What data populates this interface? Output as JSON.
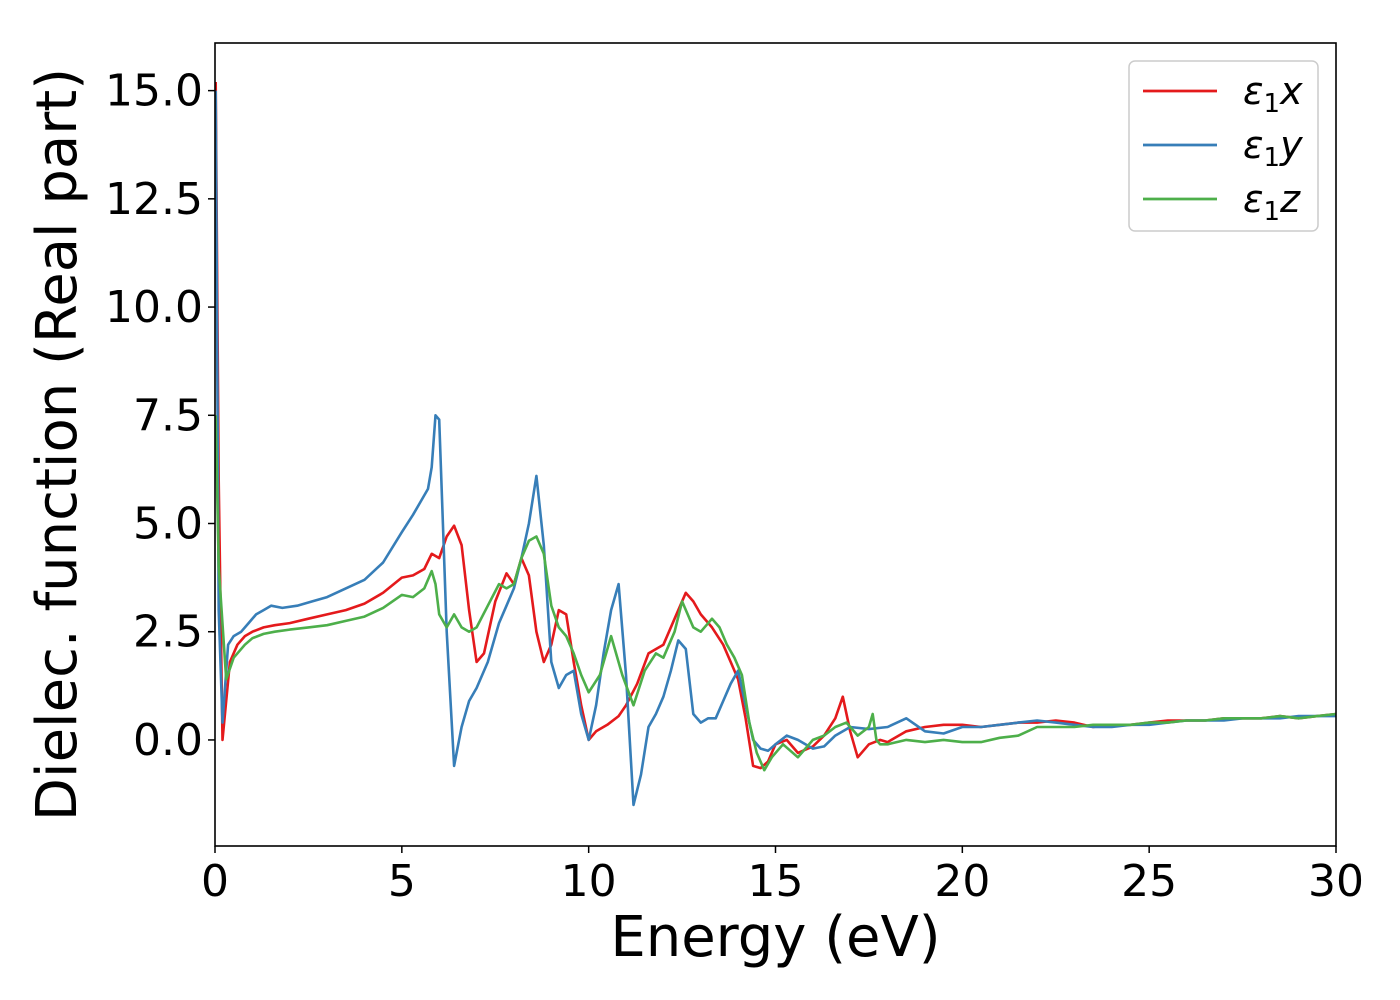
{
  "chart_data": {
    "type": "line",
    "xlabel": "Energy (eV)",
    "ylabel": "Dielec. function (Real part)",
    "xlim": [
      0,
      30
    ],
    "ylim": [
      -2.45,
      16.1
    ],
    "xticks": [
      0,
      5,
      10,
      15,
      20,
      25,
      30
    ],
    "xtick_labels": [
      "0",
      "5",
      "10",
      "15",
      "20",
      "25",
      "30"
    ],
    "yticks": [
      0.0,
      2.5,
      5.0,
      7.5,
      10.0,
      12.5,
      15.0
    ],
    "ytick_labels": [
      "0.0",
      "2.5",
      "5.0",
      "7.5",
      "10.0",
      "12.5",
      "15.0"
    ],
    "grid": false,
    "legend_position": "top-right",
    "series": [
      {
        "name": "ε1x",
        "base": "ε",
        "sub": "1",
        "suffix": "x",
        "color": "#e41a1c",
        "x": [
          0.02,
          0.1,
          0.2,
          0.4,
          0.6,
          0.8,
          1.0,
          1.3,
          1.6,
          2.0,
          2.5,
          3.0,
          3.5,
          4.0,
          4.5,
          5.0,
          5.3,
          5.6,
          5.8,
          6.0,
          6.2,
          6.4,
          6.6,
          6.8,
          7.0,
          7.2,
          7.5,
          7.8,
          8.0,
          8.2,
          8.4,
          8.6,
          8.8,
          9.0,
          9.2,
          9.4,
          9.6,
          9.8,
          10.0,
          10.2,
          10.5,
          10.8,
          11.0,
          11.3,
          11.6,
          12.0,
          12.3,
          12.6,
          12.8,
          13.0,
          13.3,
          13.6,
          13.8,
          14.0,
          14.2,
          14.4,
          14.6,
          14.8,
          15.0,
          15.3,
          15.6,
          16.0,
          16.3,
          16.6,
          16.8,
          17.0,
          17.2,
          17.5,
          17.8,
          18.0,
          18.5,
          19.0,
          19.5,
          20.0,
          20.5,
          21.0,
          21.5,
          22.0,
          22.5,
          23.0,
          23.5,
          24.0,
          24.5,
          25.0,
          25.5,
          26.0,
          26.5,
          27.0,
          27.5,
          28.0,
          28.5,
          29.0,
          29.5,
          30.0
        ],
        "y": [
          15.2,
          6.0,
          0.0,
          1.8,
          2.2,
          2.4,
          2.5,
          2.6,
          2.65,
          2.7,
          2.8,
          2.9,
          3.0,
          3.15,
          3.4,
          3.75,
          3.8,
          3.95,
          4.3,
          4.2,
          4.7,
          4.95,
          4.5,
          3.0,
          1.8,
          2.0,
          3.2,
          3.85,
          3.6,
          4.2,
          3.8,
          2.5,
          1.8,
          2.2,
          3.0,
          2.9,
          1.8,
          0.8,
          0.0,
          0.2,
          0.35,
          0.55,
          0.8,
          1.3,
          2.0,
          2.2,
          2.8,
          3.4,
          3.2,
          2.9,
          2.6,
          2.2,
          1.8,
          1.4,
          0.5,
          -0.6,
          -0.65,
          -0.5,
          -0.1,
          0.0,
          -0.3,
          -0.15,
          0.1,
          0.5,
          1.0,
          0.2,
          -0.4,
          -0.1,
          0.0,
          -0.05,
          0.2,
          0.3,
          0.35,
          0.35,
          0.3,
          0.35,
          0.4,
          0.4,
          0.45,
          0.4,
          0.3,
          0.35,
          0.35,
          0.4,
          0.45,
          0.45,
          0.45,
          0.5,
          0.5,
          0.5,
          0.55,
          0.5,
          0.55,
          0.6
        ]
      },
      {
        "name": "ε1y",
        "base": "ε",
        "sub": "1",
        "suffix": "y",
        "color": "#377eb8",
        "x": [
          0.02,
          0.1,
          0.2,
          0.35,
          0.5,
          0.7,
          0.9,
          1.1,
          1.3,
          1.5,
          1.8,
          2.2,
          2.6,
          3.0,
          3.5,
          4.0,
          4.5,
          5.0,
          5.3,
          5.5,
          5.7,
          5.8,
          5.9,
          6.0,
          6.1,
          6.2,
          6.4,
          6.6,
          6.8,
          7.0,
          7.3,
          7.6,
          7.8,
          8.0,
          8.2,
          8.4,
          8.6,
          8.8,
          9.0,
          9.2,
          9.4,
          9.6,
          9.8,
          10.0,
          10.2,
          10.4,
          10.6,
          10.8,
          11.0,
          11.2,
          11.4,
          11.6,
          11.8,
          12.0,
          12.2,
          12.4,
          12.6,
          12.8,
          13.0,
          13.2,
          13.4,
          13.6,
          13.8,
          14.0,
          14.2,
          14.4,
          14.6,
          14.8,
          15.0,
          15.3,
          15.6,
          16.0,
          16.3,
          16.6,
          17.0,
          17.5,
          18.0,
          18.5,
          19.0,
          19.5,
          20.0,
          20.5,
          21.0,
          21.5,
          22.0,
          22.5,
          23.0,
          23.5,
          24.0,
          24.5,
          25.0,
          25.5,
          26.0,
          26.5,
          27.0,
          27.5,
          28.0,
          28.5,
          29.0,
          29.5,
          30.0
        ],
        "y": [
          15.0,
          3.0,
          0.4,
          2.2,
          2.4,
          2.5,
          2.7,
          2.9,
          3.0,
          3.1,
          3.05,
          3.1,
          3.2,
          3.3,
          3.5,
          3.7,
          4.1,
          4.8,
          5.2,
          5.5,
          5.8,
          6.3,
          7.5,
          7.4,
          5.0,
          2.5,
          -0.6,
          0.3,
          0.9,
          1.2,
          1.8,
          2.7,
          3.1,
          3.5,
          4.2,
          5.0,
          6.1,
          4.5,
          1.8,
          1.2,
          1.5,
          1.6,
          0.6,
          0.0,
          0.8,
          2.0,
          3.0,
          3.6,
          1.5,
          -1.5,
          -0.8,
          0.3,
          0.6,
          1.0,
          1.6,
          2.3,
          2.1,
          0.6,
          0.4,
          0.5,
          0.5,
          0.9,
          1.3,
          1.6,
          0.8,
          0.0,
          -0.2,
          -0.25,
          -0.1,
          0.1,
          0.0,
          -0.2,
          -0.15,
          0.1,
          0.3,
          0.25,
          0.3,
          0.5,
          0.2,
          0.15,
          0.3,
          0.3,
          0.35,
          0.4,
          0.45,
          0.4,
          0.35,
          0.3,
          0.3,
          0.35,
          0.35,
          0.4,
          0.45,
          0.45,
          0.45,
          0.5,
          0.5,
          0.5,
          0.55,
          0.55,
          0.55
        ]
      },
      {
        "name": "ε1z",
        "base": "ε",
        "sub": "1",
        "suffix": "z",
        "color": "#4daf4a",
        "x": [
          0.02,
          0.1,
          0.3,
          0.5,
          0.8,
          1.0,
          1.3,
          1.6,
          2.0,
          2.5,
          3.0,
          3.5,
          4.0,
          4.5,
          5.0,
          5.3,
          5.6,
          5.8,
          5.9,
          6.0,
          6.2,
          6.4,
          6.6,
          6.8,
          7.0,
          7.3,
          7.6,
          7.8,
          8.0,
          8.2,
          8.4,
          8.6,
          8.8,
          9.0,
          9.2,
          9.4,
          9.6,
          9.8,
          10.0,
          10.3,
          10.6,
          10.9,
          11.2,
          11.5,
          11.8,
          12.0,
          12.3,
          12.5,
          12.8,
          13.0,
          13.3,
          13.5,
          13.7,
          13.9,
          14.1,
          14.3,
          14.5,
          14.7,
          14.9,
          15.2,
          15.6,
          16.0,
          16.3,
          16.6,
          16.9,
          17.2,
          17.5,
          17.6,
          17.7,
          17.8,
          18.0,
          18.5,
          19.0,
          19.5,
          20.0,
          20.5,
          21.0,
          21.5,
          22.0,
          22.5,
          23.0,
          23.5,
          24.0,
          24.5,
          25.0,
          25.5,
          26.0,
          26.5,
          27.0,
          27.5,
          28.0,
          28.5,
          29.0,
          29.5,
          30.0
        ],
        "y": [
          7.5,
          4.0,
          1.4,
          1.9,
          2.2,
          2.35,
          2.45,
          2.5,
          2.55,
          2.6,
          2.65,
          2.75,
          2.85,
          3.05,
          3.35,
          3.3,
          3.5,
          3.9,
          3.6,
          2.9,
          2.6,
          2.9,
          2.6,
          2.5,
          2.6,
          3.1,
          3.6,
          3.5,
          3.6,
          4.2,
          4.6,
          4.7,
          4.3,
          3.1,
          2.6,
          2.4,
          2.0,
          1.5,
          1.1,
          1.5,
          2.4,
          1.5,
          0.8,
          1.6,
          2.0,
          1.9,
          2.5,
          3.2,
          2.6,
          2.5,
          2.8,
          2.6,
          2.2,
          1.9,
          1.5,
          0.4,
          -0.3,
          -0.7,
          -0.4,
          -0.1,
          -0.4,
          0.0,
          0.1,
          0.3,
          0.4,
          0.1,
          0.3,
          0.6,
          0.0,
          -0.1,
          -0.1,
          0.0,
          -0.05,
          0.0,
          -0.05,
          -0.05,
          0.05,
          0.1,
          0.3,
          0.3,
          0.3,
          0.35,
          0.35,
          0.35,
          0.4,
          0.4,
          0.45,
          0.45,
          0.5,
          0.5,
          0.5,
          0.55,
          0.5,
          0.55,
          0.6
        ]
      }
    ]
  }
}
